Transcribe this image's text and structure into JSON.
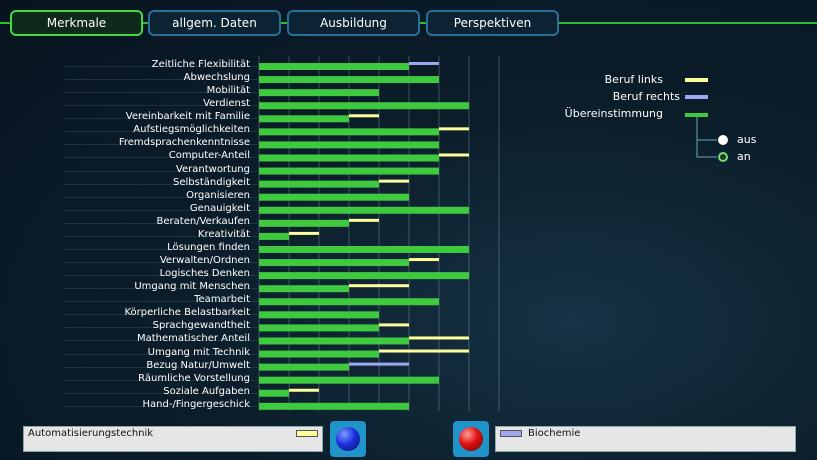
{
  "tabs": [
    {
      "label": "Merkmale",
      "active": true
    },
    {
      "label": "allgem. Daten",
      "active": false
    },
    {
      "label": "Ausbildung",
      "active": false
    },
    {
      "label": "Perspektiven",
      "active": false
    }
  ],
  "legend": {
    "beruf_links": "Beruf links",
    "beruf_rechts": "Beruf rechts",
    "uebereinstimmung": "Übereinstimmung",
    "option_aus": "aus",
    "option_an": "an",
    "selected": "an",
    "colors": {
      "links": "#ffff99",
      "rechts": "#9ea8f0",
      "match": "#3fc93f"
    }
  },
  "left_job": {
    "name": "Automatisierungstechnik"
  },
  "right_job": {
    "name": "Biochemie"
  },
  "chart_data": {
    "type": "bar",
    "orientation": "horizontal",
    "xlim": [
      0,
      8
    ],
    "categories": [
      "Zeitliche Flexibilität",
      "Abwechslung",
      "Mobilität",
      "Verdienst",
      "Vereinbarkeit mit Familie",
      "Aufstiegsmöglichkeiten",
      "Fremdsprachenkenntnisse",
      "Computer-Anteil",
      "Verantwortung",
      "Selbständigkeit",
      "Organisieren",
      "Genauigkeit",
      "Beraten/Verkaufen",
      "Kreativität",
      "Lösungen finden",
      "Verwalten/Ordnen",
      "Logisches Denken",
      "Umgang mit Menschen",
      "Teamarbeit",
      "Körperliche Belastbarkeit",
      "Sprachgewandtheit",
      "Mathematischer Anteil",
      "Umgang mit Technik",
      "Bezug Natur/Umwelt",
      "Räumliche Vorstellung",
      "Soziale Aufgaben",
      "Hand-/Fingergeschick"
    ],
    "series": [
      {
        "name": "Beruf links",
        "values": [
          5,
          6,
          4,
          7,
          4,
          7,
          6,
          7,
          6,
          5,
          5,
          7,
          4,
          2,
          7,
          6,
          7,
          5,
          6,
          4,
          5,
          7,
          7,
          3,
          6,
          2,
          5
        ]
      },
      {
        "name": "Beruf rechts",
        "values": [
          6,
          6,
          4,
          7,
          3,
          6,
          6,
          6,
          6,
          4,
          5,
          7,
          3,
          1,
          7,
          5,
          7,
          3,
          6,
          4,
          4,
          5,
          4,
          5,
          6,
          1,
          5
        ]
      }
    ]
  }
}
